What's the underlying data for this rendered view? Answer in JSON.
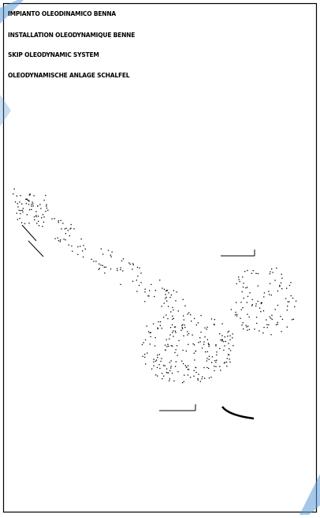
{
  "header": {
    "titles": [
      "IMPIANTO OLEODINAMICO BENNA",
      "INSTALLATION OLEODYNAMIQUE BENNE",
      "SKIP OLEODYNAMIC SYSTEM",
      "OLEODYNAMISCHE ANLAGE SCHALFEL"
    ]
  }
}
